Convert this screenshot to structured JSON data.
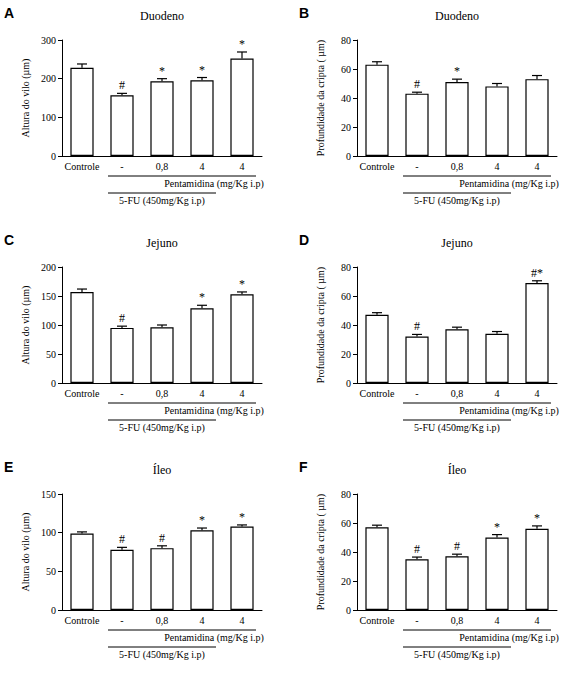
{
  "chart_data": [
    {
      "type": "bar",
      "panel_label": "A",
      "title": "Duodeno",
      "y_label": "Altura do vilo (µm)",
      "categories": [
        "Controle",
        "-",
        "0,8",
        "4",
        "4"
      ],
      "values": [
        228,
        157,
        193,
        196,
        252
      ],
      "errors": [
        10,
        5,
        7,
        7,
        17
      ],
      "significance": [
        null,
        "#",
        "*",
        "*",
        "*"
      ],
      "annotations": [
        "Pentamidina (mg/Kg i.p)",
        "5-FU (450mg/Kg i.p)"
      ],
      "color": "#ffffff",
      "ylim": [
        0,
        300
      ],
      "yticks": [
        0,
        100,
        200,
        300
      ],
      "grid": false
    },
    {
      "type": "bar",
      "panel_label": "B",
      "title": "Duodeno",
      "y_label": "Profundidade da cripta ( µm)",
      "categories": [
        "Controle",
        "-",
        "0,8",
        "4",
        "4"
      ],
      "values": [
        63,
        43,
        51,
        48,
        53
      ],
      "errors": [
        2,
        1,
        2,
        2,
        2.5
      ],
      "significance": [
        null,
        "#",
        "*",
        null,
        null
      ],
      "annotations": [
        "Pentamidina (mg/Kg i.p)",
        "5-FU (450mg/Kg i.p)"
      ],
      "color": "#ffffff",
      "ylim": [
        0,
        80
      ],
      "yticks": [
        0,
        20,
        40,
        60,
        80
      ],
      "grid": false
    },
    {
      "type": "bar",
      "panel_label": "C",
      "title": "Jejuno",
      "y_label": "Altura do vilo (µm)",
      "categories": [
        "Controle",
        "-",
        "0,8",
        "4",
        "4"
      ],
      "values": [
        157,
        95,
        96,
        129,
        153
      ],
      "errors": [
        5,
        3,
        4,
        5,
        4
      ],
      "significance": [
        null,
        "#",
        null,
        "*",
        "*"
      ],
      "annotations": [
        "Pentamidina (mg/Kg i.p)",
        "5-FU (450mg/Kg i.p)"
      ],
      "color": "#ffffff",
      "ylim": [
        0,
        200
      ],
      "yticks": [
        0,
        50,
        100,
        150,
        200
      ],
      "grid": false
    },
    {
      "type": "bar",
      "panel_label": "D",
      "title": "Jejuno",
      "y_label": "Profundidade da cripta ( µm)",
      "categories": [
        "Controle",
        "-",
        "0,8",
        "4",
        "4"
      ],
      "values": [
        47,
        32,
        37,
        34,
        69
      ],
      "errors": [
        1.5,
        1.5,
        1.5,
        1.5,
        1.5
      ],
      "significance": [
        null,
        "#",
        null,
        null,
        "#*"
      ],
      "annotations": [
        "Pentamidina (mg/Kg i.p)",
        "5-FU (450mg/Kg i.p)"
      ],
      "color": "#ffffff",
      "ylim": [
        0,
        80
      ],
      "yticks": [
        0,
        20,
        40,
        60,
        80
      ],
      "grid": false
    },
    {
      "type": "bar",
      "panel_label": "E",
      "title": "Íleo",
      "y_label": "Altura do vilo (µm)",
      "categories": [
        "Controle",
        "-",
        "0,8",
        "4",
        "4"
      ],
      "values": [
        99,
        78,
        80,
        103,
        108
      ],
      "errors": [
        2,
        3,
        3,
        3,
        2
      ],
      "significance": [
        null,
        "#",
        "#",
        "*",
        "*"
      ],
      "annotations": [
        "Pentamidina (mg/Kg i.p)",
        "5-FU (450mg/Kg i.p)"
      ],
      "color": "#ffffff",
      "ylim": [
        0,
        150
      ],
      "yticks": [
        0,
        50,
        100,
        150
      ],
      "grid": false
    },
    {
      "type": "bar",
      "panel_label": "F",
      "title": "Íleo",
      "y_label": "Profundidade da cripta ( µm)",
      "categories": [
        "Controle",
        "-",
        "0,8",
        "4",
        "4"
      ],
      "values": [
        57,
        35,
        37,
        50,
        56
      ],
      "errors": [
        1.5,
        1.5,
        1.5,
        2,
        2
      ],
      "significance": [
        null,
        "#",
        "#",
        "*",
        "*"
      ],
      "annotations": [
        "Pentamidina (mg/Kg i.p)",
        "5-FU (450mg/Kg i.p)"
      ],
      "color": "#ffffff",
      "ylim": [
        0,
        80
      ],
      "yticks": [
        0,
        20,
        40,
        60,
        80
      ],
      "grid": false
    }
  ]
}
